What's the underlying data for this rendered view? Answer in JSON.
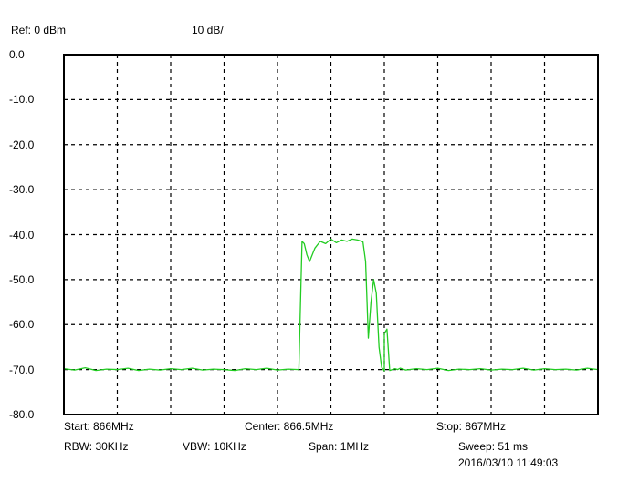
{
  "header": {
    "ref": "Ref: 0 dBm",
    "scale": "10 dB/"
  },
  "footer": {
    "start": "Start: 866MHz",
    "center": "Center: 866.5MHz",
    "stop": "Stop: 867MHz",
    "rbw": "RBW: 30KHz",
    "vbw": "VBW: 10KHz",
    "span": "Span: 1MHz",
    "sweep": "Sweep: 51  ms",
    "timestamp": "2016/03/10 11:49:03"
  },
  "colors": {
    "trace": "#22cc22",
    "frame": "#000000",
    "grid": "#000000",
    "background": "#ffffff"
  },
  "chart_data": {
    "type": "line",
    "title": "",
    "xlabel": "",
    "ylabel": "",
    "xlim": [
      866.0,
      867.0
    ],
    "ylim": [
      -80,
      0
    ],
    "grid": true,
    "grid_style": "dashed",
    "yticks": [
      "0.0",
      "-10.0",
      "-20.0",
      "-30.0",
      "-40.0",
      "-50.0",
      "-60.0",
      "-70.0",
      "-80.0"
    ],
    "series": [
      {
        "x": [
          866.0,
          866.02,
          866.04,
          866.06,
          866.08,
          866.1,
          866.12,
          866.14,
          866.16,
          866.18,
          866.2,
          866.22,
          866.24,
          866.26,
          866.28,
          866.3,
          866.32,
          866.34,
          866.36,
          866.38,
          866.4,
          866.42,
          866.44,
          866.442,
          866.446,
          866.45,
          866.455,
          866.46,
          866.47,
          866.48,
          866.49,
          866.5,
          866.51,
          866.52,
          866.53,
          866.54,
          866.55,
          866.56,
          866.565,
          866.57,
          866.575,
          866.58,
          866.585,
          866.59,
          866.595,
          866.6,
          866.6,
          866.605,
          866.61,
          866.615,
          866.62,
          866.625,
          866.63,
          866.64,
          866.66,
          866.68,
          866.7,
          866.72,
          866.74,
          866.76,
          866.78,
          866.8,
          866.82,
          866.84,
          866.86,
          866.88,
          866.9,
          866.92,
          866.94,
          866.96,
          866.98,
          867.0
        ],
        "y": [
          -69.8,
          -70.1,
          -69.6,
          -70.2,
          -69.9,
          -70.0,
          -69.7,
          -70.2,
          -69.9,
          -70.1,
          -69.8,
          -70.0,
          -69.7,
          -70.1,
          -69.9,
          -70.0,
          -70.2,
          -69.8,
          -70.0,
          -69.7,
          -70.1,
          -69.9,
          -70.0,
          -60.0,
          -41.5,
          -42.0,
          -44.5,
          -46.0,
          -43.0,
          -41.5,
          -42.0,
          -41.0,
          -41.8,
          -41.2,
          -41.5,
          -41.0,
          -41.2,
          -41.6,
          -46.0,
          -63.0,
          -55.0,
          -50.0,
          -53.0,
          -65.0,
          -69.5,
          -70.3,
          -62.0,
          -61.0,
          -70.2,
          -70.0,
          -69.8,
          -70.0,
          -69.7,
          -70.1,
          -69.8,
          -70.0,
          -69.7,
          -70.2,
          -69.9,
          -70.0,
          -69.8,
          -70.1,
          -69.9,
          -70.0,
          -69.7,
          -70.1,
          -69.8,
          -70.0,
          -69.9,
          -70.1,
          -69.7,
          -70.0
        ]
      }
    ]
  }
}
